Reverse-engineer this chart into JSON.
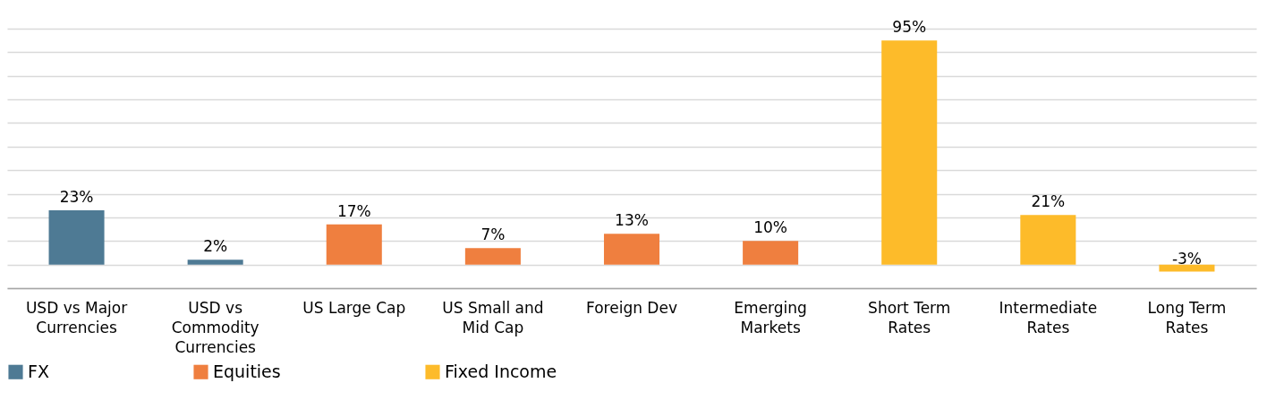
{
  "chart_data": {
    "type": "bar",
    "categories": [
      "USD vs Major Currencies",
      "USD vs Commodity Currencies",
      "US Large Cap",
      "US Small and Mid Cap",
      "Foreign Dev",
      "Emerging Markets",
      "Short Term Rates",
      "Intermediate Rates",
      "Long Term Rates"
    ],
    "series": [
      {
        "name": "FX",
        "color": "#4e7a94",
        "values": [
          23,
          2,
          null,
          null,
          null,
          null,
          null,
          null,
          null
        ],
        "value_labels": [
          "23%",
          "2%",
          null,
          null,
          null,
          null,
          null,
          null,
          null
        ]
      },
      {
        "name": "Equities",
        "color": "#ef7f3f",
        "values": [
          null,
          null,
          17,
          7,
          13,
          10,
          null,
          null,
          null
        ],
        "value_labels": [
          null,
          null,
          "17%",
          "7%",
          "13%",
          "10%",
          null,
          null,
          null
        ]
      },
      {
        "name": "Fixed Income",
        "color": "#fdbb2a",
        "values": [
          null,
          null,
          null,
          null,
          null,
          null,
          95,
          21,
          -3
        ],
        "value_labels": [
          null,
          null,
          null,
          null,
          null,
          null,
          "95%",
          "21%",
          "-3%"
        ]
      }
    ],
    "grid": "y",
    "tick_labels": "x",
    "legend": "bottom"
  }
}
